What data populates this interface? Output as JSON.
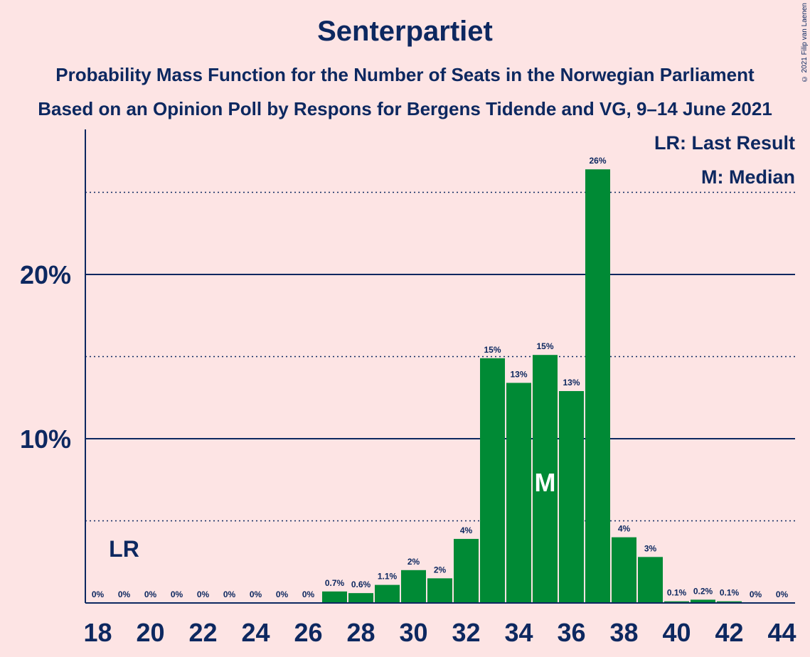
{
  "title": "Senterpartiet",
  "subtitle": "Probability Mass Function for the Number of Seats in the Norwegian Parliament",
  "subtitle2": "Based on an Opinion Poll by Respons for Bergens Tidende and VG, 9–14 June 2021",
  "copyright": "© 2021 Filip van Laenen",
  "colors": {
    "background": "#fde4e4",
    "bar": "#008a35",
    "text": "#0d2860"
  },
  "chart_data": {
    "type": "bar",
    "xlabel": "",
    "ylabel": "",
    "categories": [
      18,
      19,
      20,
      21,
      22,
      23,
      24,
      25,
      26,
      27,
      28,
      29,
      30,
      31,
      32,
      33,
      34,
      35,
      36,
      37,
      38,
      39,
      40,
      41,
      42,
      43,
      44
    ],
    "values": [
      0,
      0,
      0,
      0,
      0,
      0,
      0,
      0,
      0,
      0.7,
      0.6,
      1.1,
      2,
      1.5,
      3.9,
      14.9,
      13.4,
      15.1,
      12.9,
      26.4,
      4.0,
      2.8,
      0.1,
      0.2,
      0.1,
      0,
      0
    ],
    "data_labels": [
      "0%",
      "0%",
      "0%",
      "0%",
      "0%",
      "0%",
      "0%",
      "0%",
      "0%",
      "0.7%",
      "0.6%",
      "1.1%",
      "2%",
      "2%",
      "4%",
      "15%",
      "13%",
      "15%",
      "13%",
      "26%",
      "4%",
      "3%",
      "0.1%",
      "0.2%",
      "0.1%",
      "0%",
      "0%"
    ],
    "x_ticks": [
      "18",
      "20",
      "22",
      "24",
      "26",
      "28",
      "30",
      "32",
      "34",
      "36",
      "38",
      "40",
      "42",
      "44"
    ],
    "y_ticks": [
      {
        "value": 10,
        "label": "10%"
      },
      {
        "value": 20,
        "label": "20%"
      }
    ],
    "dotted_gridlines": [
      5,
      15,
      25
    ],
    "ylim": [
      0,
      28.7
    ],
    "last_result": {
      "seat": 19,
      "label": "LR"
    },
    "median": {
      "seat": 35,
      "label": "M"
    },
    "legend": [
      "LR: Last Result",
      "M: Median"
    ],
    "legend_position": "top-right"
  }
}
